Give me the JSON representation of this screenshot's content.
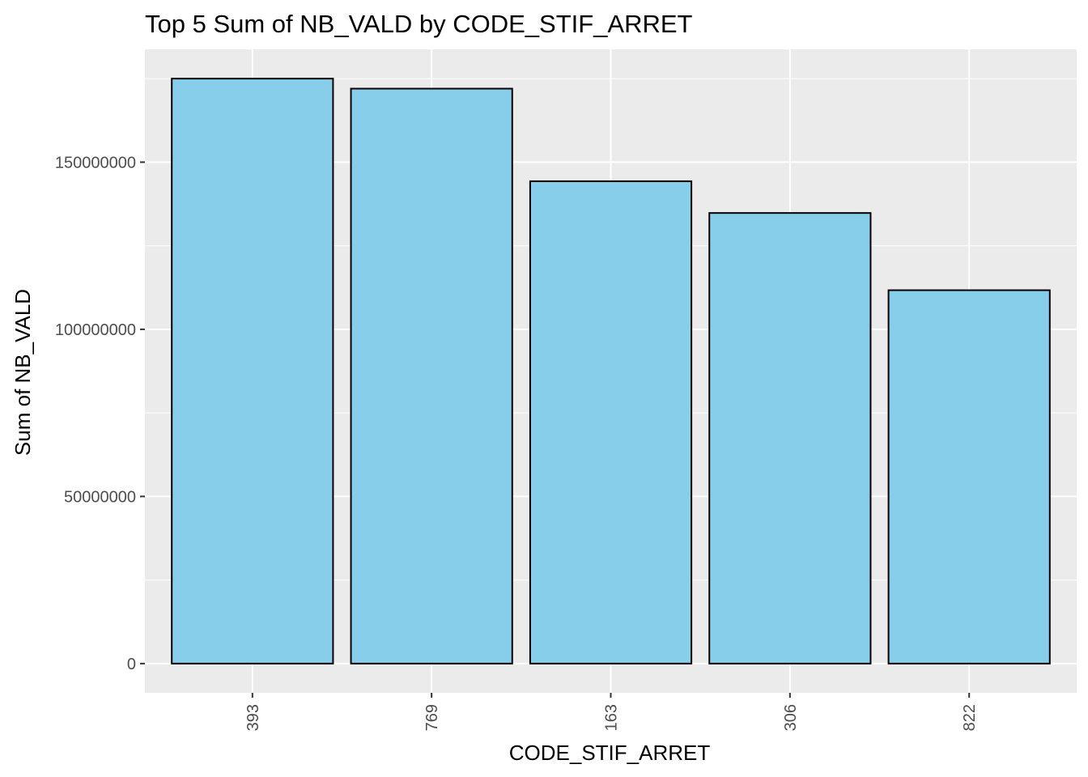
{
  "chart_data": {
    "type": "bar",
    "title": "Top 5 Sum of NB_VALD by CODE_STIF_ARRET",
    "xlabel": "CODE_STIF_ARRET",
    "ylabel": "Sum of NB_VALD",
    "categories": [
      "393",
      "769",
      "163",
      "306",
      "822"
    ],
    "values": [
      175000000,
      172000000,
      144300000,
      134800000,
      111700000
    ],
    "ylim": [
      -8750000,
      183750000
    ],
    "yticks": [
      0,
      50000000,
      100000000,
      150000000
    ],
    "ytick_labels": [
      "0",
      "50000000",
      "100000000",
      "150000000"
    ],
    "grid": true,
    "bar_fill": "#87CEEB",
    "bar_stroke": "#000000",
    "panel_bg": "#EBEBEB",
    "grid_color": "#FFFFFF",
    "tick_color": "#333333",
    "label_color": "#4D4D4D"
  }
}
